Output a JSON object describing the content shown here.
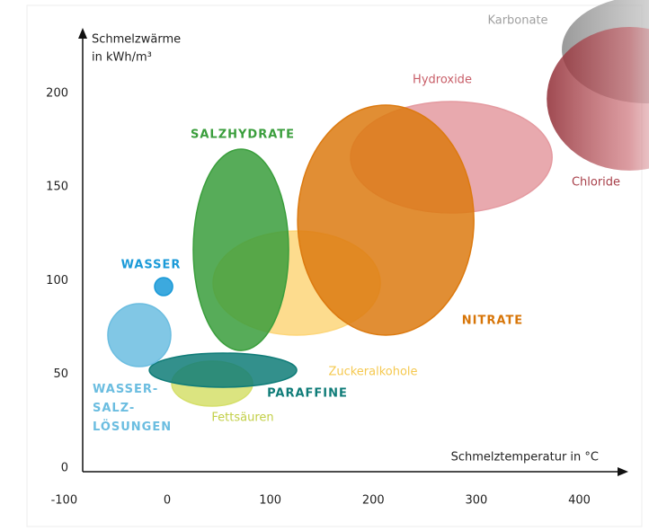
{
  "chart_data": {
    "type": "ellipse",
    "y_label": [
      "Schmelzwärme",
      "in kWh/m³"
    ],
    "x_label": "Schmelztemperatur in °C",
    "xlim": [
      -82,
      444
    ],
    "ylim": [
      -2,
      233
    ],
    "xticks": [
      -100,
      0,
      100,
      200,
      300,
      400
    ],
    "yticks": [
      0,
      50,
      100,
      150,
      200
    ],
    "series": [
      {
        "name": "Karbonate",
        "color": "#a8a8a8",
        "x": [
          383,
          549
        ],
        "y": [
          194.6,
          252
        ]
      },
      {
        "name": "Chloride",
        "color": "#b2464e",
        "x": [
          368.3,
          528.8
        ],
        "y": [
          158.7,
          235.4
        ]
      },
      {
        "name": "Hydroxide",
        "color": "#e49aa0",
        "x": [
          178,
          373.5
        ],
        "y": [
          136.1,
          195.6
        ]
      },
      {
        "name": "Zuckeralkohole",
        "color": "#fdd67a",
        "x": [
          44.5,
          206.8
        ],
        "y": [
          70.9,
          126.5
        ]
      },
      {
        "name": "Fettsäuren",
        "color": "#d5df6a",
        "x": [
          4.4,
          82.9
        ],
        "y": [
          33,
          57
        ]
      },
      {
        "name": "SALZHYDRATE",
        "color": "#3a9e3c",
        "x": [
          25.3,
          117.8
        ],
        "y": [
          62.7,
          170.2
        ]
      },
      {
        "name": "NITRATE",
        "color": "#dc7a10",
        "x": [
          126.6,
          297.6
        ],
        "y": [
          70.9,
          193.7
        ]
      },
      {
        "name": "PARAFFINE",
        "color": "#0f7c78",
        "x": [
          -17.4,
          125.7
        ],
        "y": [
          43.1,
          61.3
        ]
      },
      {
        "name": "WASSER-SALZ-LÖSUNGEN",
        "color": "#6bbde0",
        "x": [
          -57.6,
          3.5
        ],
        "y": [
          54.1,
          87.7
        ]
      },
      {
        "name": "WASSER",
        "color": "#1a9ad8",
        "x": [
          -12.2,
          5.3
        ],
        "y": [
          92,
          101.6
        ]
      }
    ]
  }
}
